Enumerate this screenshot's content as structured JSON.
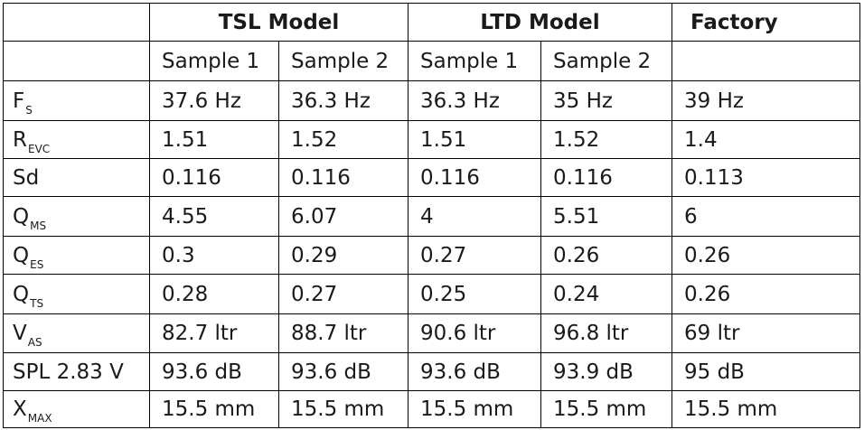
{
  "header": {
    "groups": [
      {
        "label": "TSL Model",
        "span": 2
      },
      {
        "label": "LTD Model",
        "span": 2
      },
      {
        "label": "Factory",
        "span": 1
      }
    ],
    "samples": [
      "Sample 1",
      "Sample 2",
      "Sample 1",
      "Sample 2",
      ""
    ]
  },
  "rows": [
    {
      "param": {
        "main": "F",
        "sub": "S",
        "trail": ""
      },
      "values": [
        "37.6 Hz",
        "36.3 Hz",
        "36.3 Hz",
        "35 Hz",
        "39 Hz"
      ]
    },
    {
      "param": {
        "main": "R",
        "sub": "EVC",
        "trail": ""
      },
      "values": [
        "1.51",
        "1.52",
        "1.51",
        "1.52",
        "1.4"
      ]
    },
    {
      "param": {
        "main": "Sd",
        "sub": "",
        "trail": ""
      },
      "values": [
        "0.116",
        "0.116",
        "0.116",
        "0.116",
        "0.113"
      ]
    },
    {
      "param": {
        "main": "Q",
        "sub": "MS",
        "trail": ""
      },
      "values": [
        "4.55",
        "6.07",
        "4",
        "5.51",
        "6"
      ]
    },
    {
      "param": {
        "main": "Q",
        "sub": "ES",
        "trail": ""
      },
      "values": [
        "0.3",
        "0.29",
        "0.27",
        "0.26",
        "0.26"
      ]
    },
    {
      "param": {
        "main": "Q",
        "sub": "TS",
        "trail": ""
      },
      "values": [
        "0.28",
        "0.27",
        "0.25",
        "0.24",
        "0.26"
      ]
    },
    {
      "param": {
        "main": "V",
        "sub": "AS",
        "trail": ""
      },
      "values": [
        "82.7 ltr",
        "88.7 ltr",
        "90.6 ltr",
        "96.8 ltr",
        "69 ltr"
      ]
    },
    {
      "param": {
        "main": "SPL 2.83 V",
        "sub": "",
        "trail": ""
      },
      "values": [
        "93.6 dB",
        "93.6 dB",
        "93.6 dB",
        "93.9 dB",
        "95 dB"
      ]
    },
    {
      "param": {
        "main": "X",
        "sub": "MAX",
        "trail": ""
      },
      "values": [
        "15.5 mm",
        "15.5 mm",
        "15.5 mm",
        "15.5 mm",
        "15.5 mm"
      ]
    }
  ]
}
